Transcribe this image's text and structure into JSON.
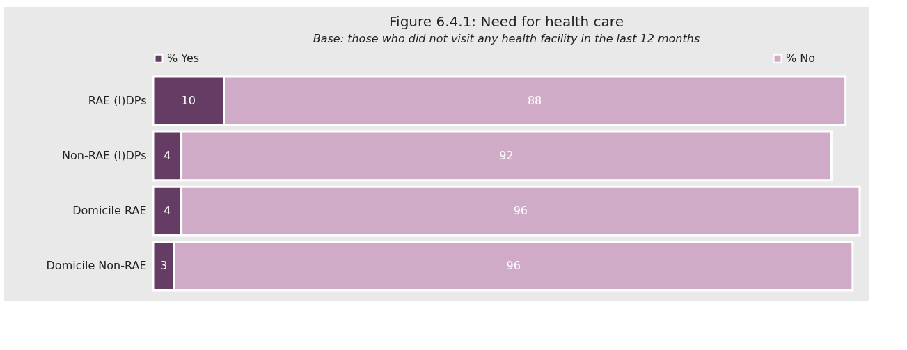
{
  "chart_data": {
    "type": "bar",
    "orientation": "horizontal",
    "stacked": true,
    "title": "Figure 6.4.1:  Need for health care",
    "subtitle": "Base: those who did not visit any health facility in the last 12 months",
    "categories": [
      "RAE (I)DPs",
      "Non-RAE (I)DPs",
      "Domicile RAE",
      "Domicile Non-RAE"
    ],
    "series": [
      {
        "name": "% Yes",
        "color": "#643c64",
        "values": [
          10,
          4,
          4,
          3
        ]
      },
      {
        "name": "% No",
        "color": "#d0abc8",
        "values": [
          88,
          92,
          96,
          96
        ]
      }
    ],
    "data_labels": true,
    "legend": "top",
    "tick_labels": "y"
  }
}
